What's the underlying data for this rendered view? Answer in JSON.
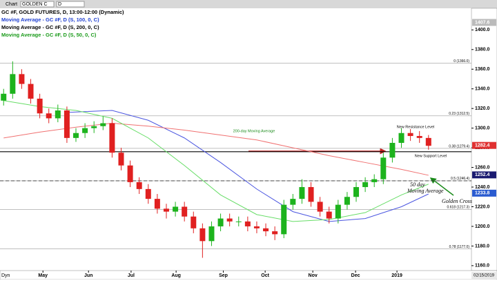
{
  "toolbar": {
    "chart": "Chart",
    "symbol": "GOLDEN C",
    "interval": "D"
  },
  "chart_data": {
    "type": "candlestick",
    "header": [
      "GC #F, GOLD FUTURES, D, 13:00-12:00 (Dynamic)",
      "Moving Average - GC #F, D (S, 100, 0, C)",
      "Moving Average - GC #F, D (S, 200, 0, C)",
      "Moving Average - GC #F, D (S, 50, 0, C)"
    ],
    "header_colors": [
      "#000000",
      "#1f3fd0",
      "#000000",
      "#1a9a1a"
    ],
    "x": [
      0,
      1,
      2,
      3,
      4,
      5,
      6,
      7,
      8,
      9,
      10,
      11,
      12,
      13,
      14,
      15,
      16,
      17,
      18,
      19,
      20,
      21,
      22,
      23,
      24,
      25,
      26,
      27,
      28,
      29,
      30,
      31,
      32,
      33,
      34,
      35,
      36,
      37,
      38,
      39,
      40,
      41,
      42,
      43,
      44,
      45,
      46,
      47
    ],
    "open": [
      1328,
      1335,
      1355,
      1345,
      1330,
      1315,
      1310,
      1318,
      1290,
      1295,
      1300,
      1302,
      1305,
      1275,
      1262,
      1245,
      1238,
      1228,
      1218,
      1215,
      1220,
      1210,
      1198,
      1185,
      1200,
      1208,
      1205,
      1205,
      1200,
      1198,
      1195,
      1192,
      1222,
      1228,
      1240,
      1225,
      1215,
      1208,
      1222,
      1230,
      1240,
      1245,
      1248,
      1270,
      1285,
      1295,
      1292,
      1290
    ],
    "high": [
      1340,
      1368,
      1360,
      1350,
      1335,
      1320,
      1324,
      1322,
      1300,
      1305,
      1307,
      1312,
      1310,
      1280,
      1267,
      1250,
      1243,
      1233,
      1223,
      1225,
      1225,
      1215,
      1203,
      1205,
      1213,
      1213,
      1210,
      1210,
      1205,
      1203,
      1200,
      1227,
      1233,
      1248,
      1245,
      1230,
      1220,
      1227,
      1235,
      1245,
      1250,
      1253,
      1275,
      1290,
      1300,
      1299,
      1297,
      1293
    ],
    "low": [
      1323,
      1330,
      1340,
      1325,
      1310,
      1305,
      1306,
      1285,
      1286,
      1290,
      1295,
      1298,
      1270,
      1257,
      1240,
      1233,
      1223,
      1213,
      1208,
      1210,
      1205,
      1193,
      1168,
      1180,
      1195,
      1200,
      1200,
      1195,
      1193,
      1190,
      1186,
      1188,
      1217,
      1223,
      1220,
      1210,
      1203,
      1203,
      1217,
      1225,
      1235,
      1240,
      1243,
      1265,
      1280,
      1287,
      1285,
      1278
    ],
    "close": [
      1335,
      1355,
      1345,
      1330,
      1315,
      1310,
      1318,
      1290,
      1295,
      1300,
      1302,
      1305,
      1275,
      1262,
      1245,
      1238,
      1228,
      1218,
      1215,
      1220,
      1210,
      1198,
      1185,
      1200,
      1208,
      1205,
      1205,
      1200,
      1198,
      1195,
      1192,
      1222,
      1228,
      1240,
      1225,
      1215,
      1208,
      1222,
      1230,
      1240,
      1245,
      1248,
      1270,
      1285,
      1295,
      1292,
      1290,
      1282
    ],
    "up_color": "#1db31d",
    "down_color": "#e02020",
    "moving_averages": [
      {
        "color": "#4a55e0",
        "x": [
          7,
          12,
          16,
          20,
          24,
          28,
          32,
          36,
          40,
          44,
          47
        ],
        "values": [
          1316,
          1318,
          1308,
          1290,
          1265,
          1238,
          1215,
          1205,
          1208,
          1220,
          1233
        ]
      },
      {
        "color": "#f07070",
        "x": [
          0,
          4,
          8,
          12,
          16,
          20,
          24,
          28,
          32,
          36,
          40,
          44,
          47
        ],
        "values": [
          1290,
          1296,
          1301,
          1305,
          1302,
          1298,
          1293,
          1288,
          1280,
          1272,
          1265,
          1258,
          1252
        ]
      },
      {
        "color": "#66dd66",
        "x": [
          0,
          4,
          8,
          12,
          16,
          20,
          24,
          28,
          32,
          36,
          40,
          44,
          47
        ],
        "values": [
          1328,
          1322,
          1318,
          1310,
          1290,
          1262,
          1232,
          1212,
          1205,
          1207,
          1214,
          1232,
          1243
        ]
      }
    ],
    "levels": [
      {
        "label": "0 (1366.0)",
        "value": 1366
      },
      {
        "label": "0.23 (1312.5)",
        "value": 1312.5
      },
      {
        "label": "0.38 (1279.4)",
        "value": 1279.4
      },
      {
        "label": "0.5 (1246.4)",
        "value": 1246.4
      },
      {
        "label": "0.618 (1217.3)",
        "value": 1217.3
      },
      {
        "label": "0.78 (1177.0)",
        "value": 1177
      }
    ],
    "horizontal_lines": [
      {
        "value": 1276,
        "color": "#000000",
        "dash": false
      },
      {
        "value": 1246.4,
        "color": "#333333",
        "dash": true
      }
    ],
    "price_tags": [
      {
        "value": 1407.6,
        "color": "#bbbbbb"
      },
      {
        "value": 1282.4,
        "color": "#e03030"
      },
      {
        "value": 1252.4,
        "color": "#1a1a70"
      },
      {
        "value": 1233.8,
        "color": "#2a5bd0"
      }
    ],
    "annotations": [
      "200-day Moving Average",
      "New Resistance Level",
      "New Support Level",
      "50 day",
      "Moving Average",
      "Golden Cross"
    ],
    "xlim": [
      -0.4,
      51.75
    ],
    "xticks": [
      {
        "value": 4.35,
        "label": "May"
      },
      {
        "value": 9.39,
        "label": "Jun"
      },
      {
        "value": 14.1,
        "label": "Jul"
      },
      {
        "value": 19.08,
        "label": "Aug"
      },
      {
        "value": 24.3,
        "label": "Sep"
      },
      {
        "value": 28.93,
        "label": "Oct"
      },
      {
        "value": 34.2,
        "label": "Nov"
      },
      {
        "value": 38.93,
        "label": "Dec"
      },
      {
        "value": 43.51,
        "label": "2019"
      }
    ],
    "ylim": [
      1155,
      1422
    ],
    "yticks": [
      {
        "value": 1400,
        "label": "1400.0"
      },
      {
        "value": 1380,
        "label": "1380.0"
      },
      {
        "value": 1360,
        "label": "1360.0"
      },
      {
        "value": 1340,
        "label": "1340.0"
      },
      {
        "value": 1320,
        "label": "1320.0"
      },
      {
        "value": 1300,
        "label": "1300.0"
      },
      {
        "value": 1280,
        "label": "1280.0"
      },
      {
        "value": 1260,
        "label": "1260.0"
      },
      {
        "value": 1240,
        "label": "1240.0"
      },
      {
        "value": 1220,
        "label": "1220.0"
      },
      {
        "value": 1200,
        "label": "1200.0"
      },
      {
        "value": 1180,
        "label": "1180.0"
      },
      {
        "value": 1160,
        "label": "1160.0"
      }
    ],
    "footer_left": "Dyn",
    "footer_right": "02/15/2019"
  }
}
